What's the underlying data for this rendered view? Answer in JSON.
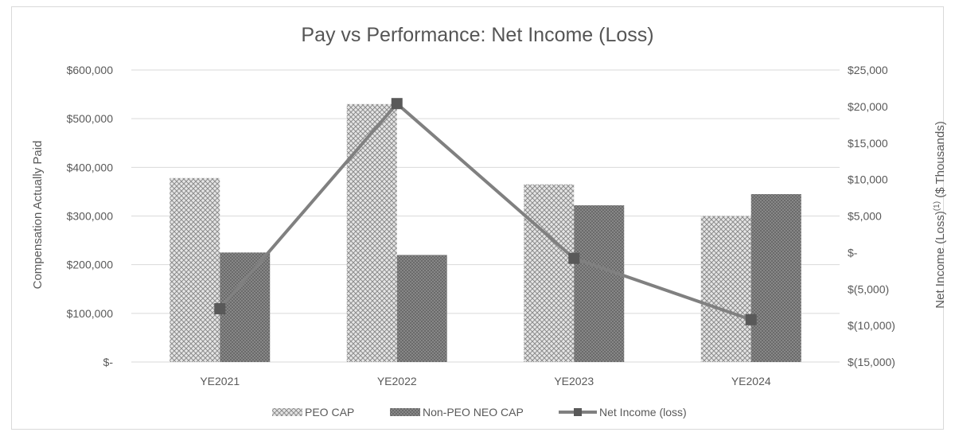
{
  "chart_data": {
    "type": "bar",
    "title": "Pay vs Performance:  Net Income (Loss)",
    "categories": [
      "YE2021",
      "YE2022",
      "YE2023",
      "YE2024"
    ],
    "ylabel": "Compensation Actually Paid",
    "y2label": "Net Income (Loss)(1) ($ Thousands)",
    "y2label_main": "Net Income (Loss)",
    "y2label_sup": "(1)",
    "y2label_tail": " ($ Thousands)",
    "ylim": [
      0,
      600000
    ],
    "y2lim": [
      -15000,
      25000
    ],
    "yticks": [
      "$-",
      "$100,000",
      "$200,000",
      "$300,000",
      "$400,000",
      "$500,000",
      "$600,000"
    ],
    "y2ticks": [
      "$(15,000)",
      "$(10,000)",
      "$(5,000)",
      "$-",
      "$5,000",
      "$10,000",
      "$15,000",
      "$20,000",
      "$25,000"
    ],
    "series": [
      {
        "name": "PEO CAP",
        "type": "bar",
        "axis": "left",
        "values": [
          378000,
          530000,
          365000,
          300000
        ],
        "color": "#bfbfbf",
        "pattern": "crosshatch-light"
      },
      {
        "name": "Non-PEO NEO CAP",
        "type": "bar",
        "axis": "left",
        "values": [
          225000,
          220000,
          322000,
          345000
        ],
        "color": "#7f7f7f",
        "pattern": "crosshatch-dark"
      },
      {
        "name": "Net Income (loss)",
        "type": "line",
        "axis": "right",
        "values": [
          -7700,
          20400,
          -800,
          -9200
        ],
        "color": "#808080",
        "marker": "square"
      }
    ],
    "legend_position": "bottom",
    "grid": true
  }
}
